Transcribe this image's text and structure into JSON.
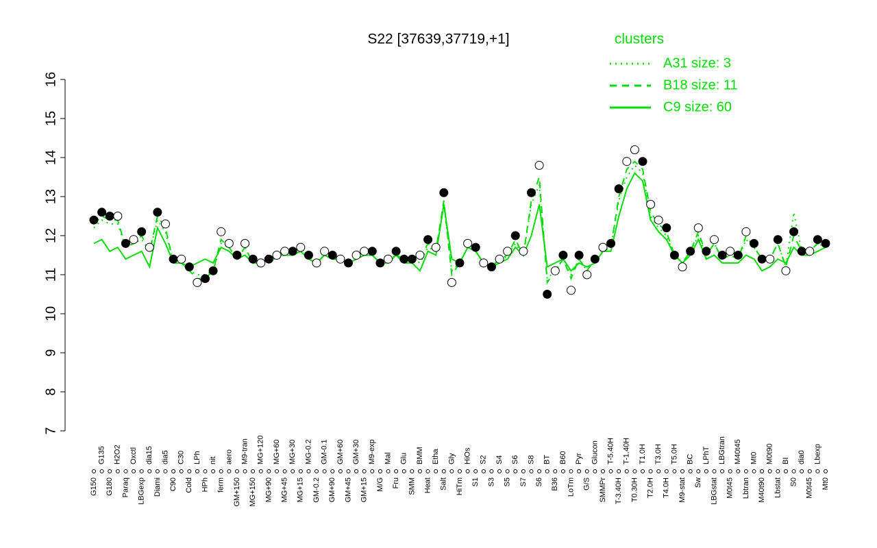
{
  "chart_data": {
    "type": "line",
    "title": "S22 [37639,37719,+1]",
    "legend_title": "clusters",
    "ylim": [
      7,
      16
    ],
    "yticks": [
      7,
      8,
      9,
      10,
      11,
      12,
      13,
      14,
      15,
      16
    ],
    "categories": [
      "G150",
      "G135",
      "G180",
      "H2O2",
      "Paraq",
      "Oxctl",
      "LBGexp",
      "dia15",
      "Diami",
      "dia5",
      "C90",
      "C30",
      "Cold",
      "LPh",
      "HPh",
      "nit",
      "ferm",
      "aero",
      "GM+150",
      "M9-tran",
      "MG+150",
      "MG+120",
      "MG+90",
      "MG+60",
      "MG+45",
      "MG+30",
      "MG+15",
      "MG-0.2",
      "GM-0.2",
      "GM-0.1",
      "GM+90",
      "GM+60",
      "GM+45",
      "GM+30",
      "GM+15",
      "M9-exp",
      "M/G",
      "Mal",
      "Fru",
      "Glu",
      "SMM",
      "BMM",
      "Heat",
      "Etha",
      "Salt",
      "Gly",
      "HiTm",
      "HiOs",
      "S1",
      "S2",
      "S3",
      "S4",
      "S5",
      "S6",
      "S7",
      "S8",
      "S6",
      "BT",
      "B36",
      "B60",
      "LoTm",
      "Pyr",
      "G/S",
      "Glucon",
      "SMMPr",
      "T-5.40H",
      "T-3.40H",
      "T-1.40H",
      "T0.30H",
      "T1.0H",
      "T2.0H",
      "T3.0H",
      "T4.0H",
      "T5.0H",
      "M9-stat",
      "BC",
      "Sw",
      "LPhT",
      "LBGstat",
      "LBGtran",
      "M0t45",
      "M40t45",
      "Lbtran",
      "Mt0",
      "M40t90",
      "M0t90",
      "Lbstat",
      "BI",
      "S0",
      "dia0",
      "M0t45",
      "Lbexp",
      "Mt0"
    ],
    "points": {
      "values": [
        12.4,
        12.6,
        12.5,
        12.5,
        11.8,
        11.9,
        12.1,
        11.7,
        12.6,
        12.3,
        11.4,
        11.4,
        11.2,
        10.8,
        10.9,
        11.1,
        12.1,
        11.8,
        11.5,
        11.8,
        11.4,
        11.3,
        11.4,
        11.5,
        11.6,
        11.6,
        11.7,
        11.5,
        11.3,
        11.6,
        11.5,
        11.4,
        11.3,
        11.5,
        11.6,
        11.6,
        11.3,
        11.4,
        11.6,
        11.4,
        11.4,
        11.5,
        11.9,
        11.7,
        13.1,
        10.8,
        11.3,
        11.8,
        11.7,
        11.3,
        11.2,
        11.4,
        11.6,
        12.0,
        11.6,
        13.1,
        13.8,
        10.5,
        11.1,
        11.5,
        10.6,
        11.5,
        11.0,
        11.4,
        11.7,
        11.8,
        13.2,
        13.9,
        14.2,
        13.9,
        12.8,
        12.4,
        12.2,
        11.5,
        11.2,
        11.6,
        12.2,
        11.6,
        11.9,
        11.5,
        11.6,
        11.5,
        12.1,
        11.8,
        11.4,
        11.4,
        11.9,
        11.1,
        12.1,
        11.6,
        11.6,
        11.9,
        11.8
      ],
      "filled": [
        true,
        true,
        true,
        false,
        true,
        false,
        true,
        false,
        true,
        false,
        true,
        false,
        true,
        false,
        true,
        true,
        false,
        false,
        true,
        false,
        true,
        false,
        true,
        false,
        false,
        true,
        false,
        true,
        false,
        false,
        true,
        false,
        true,
        false,
        false,
        true,
        true,
        false,
        true,
        true,
        true,
        false,
        true,
        false,
        true,
        false,
        true,
        false,
        true,
        false,
        true,
        false,
        false,
        true,
        false,
        true,
        false,
        true,
        false,
        true,
        false,
        true,
        false,
        true,
        false,
        true,
        true,
        false,
        false,
        true,
        false,
        false,
        true,
        true,
        false,
        true,
        false,
        true,
        false,
        true,
        false,
        true,
        false,
        true,
        true,
        false,
        true,
        false,
        true,
        true,
        false,
        true,
        true
      ]
    },
    "series": [
      {
        "name": "A31 size: 3",
        "color": "#00dd00",
        "style": "dotted",
        "values": [
          12.2,
          12.4,
          12.3,
          12.3,
          11.7,
          11.8,
          11.9,
          11.6,
          12.4,
          12.1,
          11.3,
          11.3,
          11.1,
          11.0,
          11.0,
          11.1,
          11.8,
          11.7,
          11.4,
          11.7,
          11.3,
          11.3,
          11.4,
          11.4,
          11.5,
          11.5,
          11.6,
          11.4,
          11.3,
          11.5,
          11.4,
          11.4,
          11.3,
          11.4,
          11.5,
          11.5,
          11.3,
          11.4,
          11.5,
          11.4,
          11.4,
          11.3,
          11.7,
          11.6,
          12.8,
          11.1,
          11.3,
          11.7,
          11.6,
          11.3,
          11.2,
          11.3,
          11.5,
          11.8,
          11.5,
          12.8,
          13.3,
          10.9,
          11.1,
          11.4,
          11.0,
          11.4,
          11.1,
          11.4,
          11.6,
          11.7,
          12.9,
          13.5,
          13.8,
          13.6,
          12.5,
          12.2,
          12.0,
          11.5,
          11.3,
          11.6,
          12.0,
          11.5,
          11.8,
          11.4,
          11.5,
          11.4,
          11.9,
          11.7,
          11.4,
          11.4,
          11.8,
          11.2,
          12.6,
          11.6,
          11.6,
          11.8,
          11.7
        ]
      },
      {
        "name": "B18 size: 11",
        "color": "#00dd00",
        "style": "dashed",
        "values": [
          12.3,
          12.5,
          12.4,
          12.4,
          11.7,
          11.8,
          12.0,
          11.6,
          12.5,
          12.2,
          11.3,
          11.3,
          11.1,
          10.9,
          10.9,
          11.1,
          11.9,
          11.7,
          11.4,
          11.7,
          11.3,
          11.3,
          11.4,
          11.5,
          11.5,
          11.6,
          11.6,
          11.4,
          11.3,
          11.5,
          11.4,
          11.4,
          11.3,
          11.4,
          11.5,
          11.5,
          11.3,
          11.4,
          11.5,
          11.4,
          11.4,
          11.4,
          11.8,
          11.6,
          12.9,
          11.0,
          11.3,
          11.7,
          11.6,
          11.3,
          11.2,
          11.4,
          11.5,
          11.9,
          11.5,
          12.9,
          13.5,
          10.8,
          11.1,
          11.4,
          10.9,
          11.4,
          11.1,
          11.4,
          11.6,
          11.7,
          13.0,
          13.7,
          13.9,
          13.7,
          12.6,
          12.3,
          12.1,
          11.5,
          11.3,
          11.6,
          12.1,
          11.5,
          11.8,
          11.4,
          11.5,
          11.4,
          12.0,
          11.7,
          11.4,
          11.4,
          11.8,
          11.2,
          12.0,
          11.6,
          11.6,
          11.8,
          11.7
        ]
      },
      {
        "name": "C9 size: 60",
        "color": "#00dd00",
        "style": "solid",
        "values": [
          11.8,
          11.9,
          11.6,
          11.7,
          11.4,
          11.5,
          11.6,
          11.2,
          12.2,
          11.8,
          11.3,
          11.3,
          11.2,
          11.3,
          11.4,
          11.3,
          11.7,
          11.6,
          11.4,
          11.5,
          11.3,
          11.3,
          11.4,
          11.5,
          11.5,
          11.5,
          11.6,
          11.4,
          11.3,
          11.5,
          11.4,
          11.4,
          11.3,
          11.4,
          11.5,
          11.5,
          11.3,
          11.3,
          11.5,
          11.3,
          11.3,
          11.1,
          11.6,
          11.5,
          12.8,
          11.4,
          11.3,
          11.7,
          11.6,
          11.3,
          11.2,
          11.3,
          11.4,
          11.7,
          11.5,
          12.0,
          12.8,
          11.2,
          11.3,
          11.4,
          11.1,
          11.3,
          11.2,
          11.3,
          11.6,
          11.6,
          12.5,
          13.2,
          13.6,
          13.4,
          12.4,
          12.1,
          11.9,
          11.5,
          11.3,
          11.5,
          11.9,
          11.4,
          11.5,
          11.3,
          11.3,
          11.3,
          11.5,
          11.4,
          11.1,
          11.2,
          11.4,
          11.3,
          11.7,
          11.5,
          11.5,
          11.6,
          11.7
        ]
      }
    ]
  }
}
